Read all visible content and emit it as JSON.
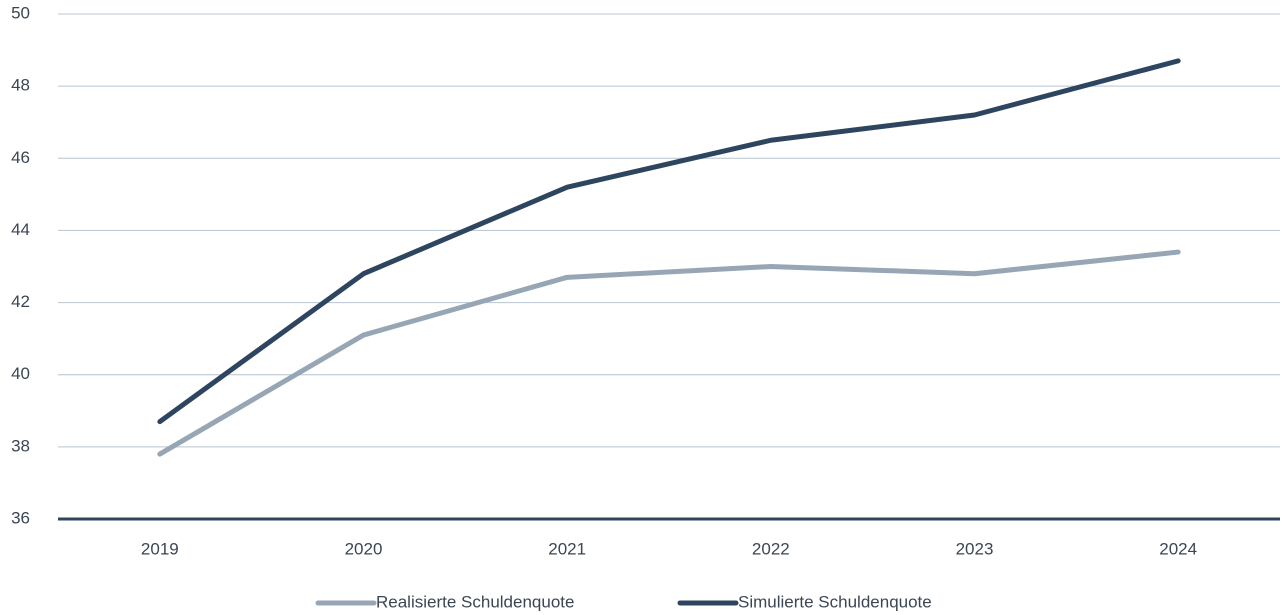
{
  "chart_data": {
    "type": "line",
    "categories": [
      "2019",
      "2020",
      "2021",
      "2022",
      "2023",
      "2024"
    ],
    "series": [
      {
        "name": "Realisierte Schuldenquote",
        "color": "#97a6b5",
        "values": [
          37.8,
          41.1,
          42.7,
          43.0,
          42.8,
          43.4
        ]
      },
      {
        "name": "Simulierte Schuldenquote",
        "color": "#2e4560",
        "values": [
          38.7,
          42.8,
          45.2,
          46.5,
          47.2,
          48.7
        ]
      }
    ],
    "ylim": [
      36,
      50
    ],
    "yticks": [
      36,
      38,
      40,
      42,
      44,
      46,
      48,
      50
    ],
    "grid": true
  }
}
